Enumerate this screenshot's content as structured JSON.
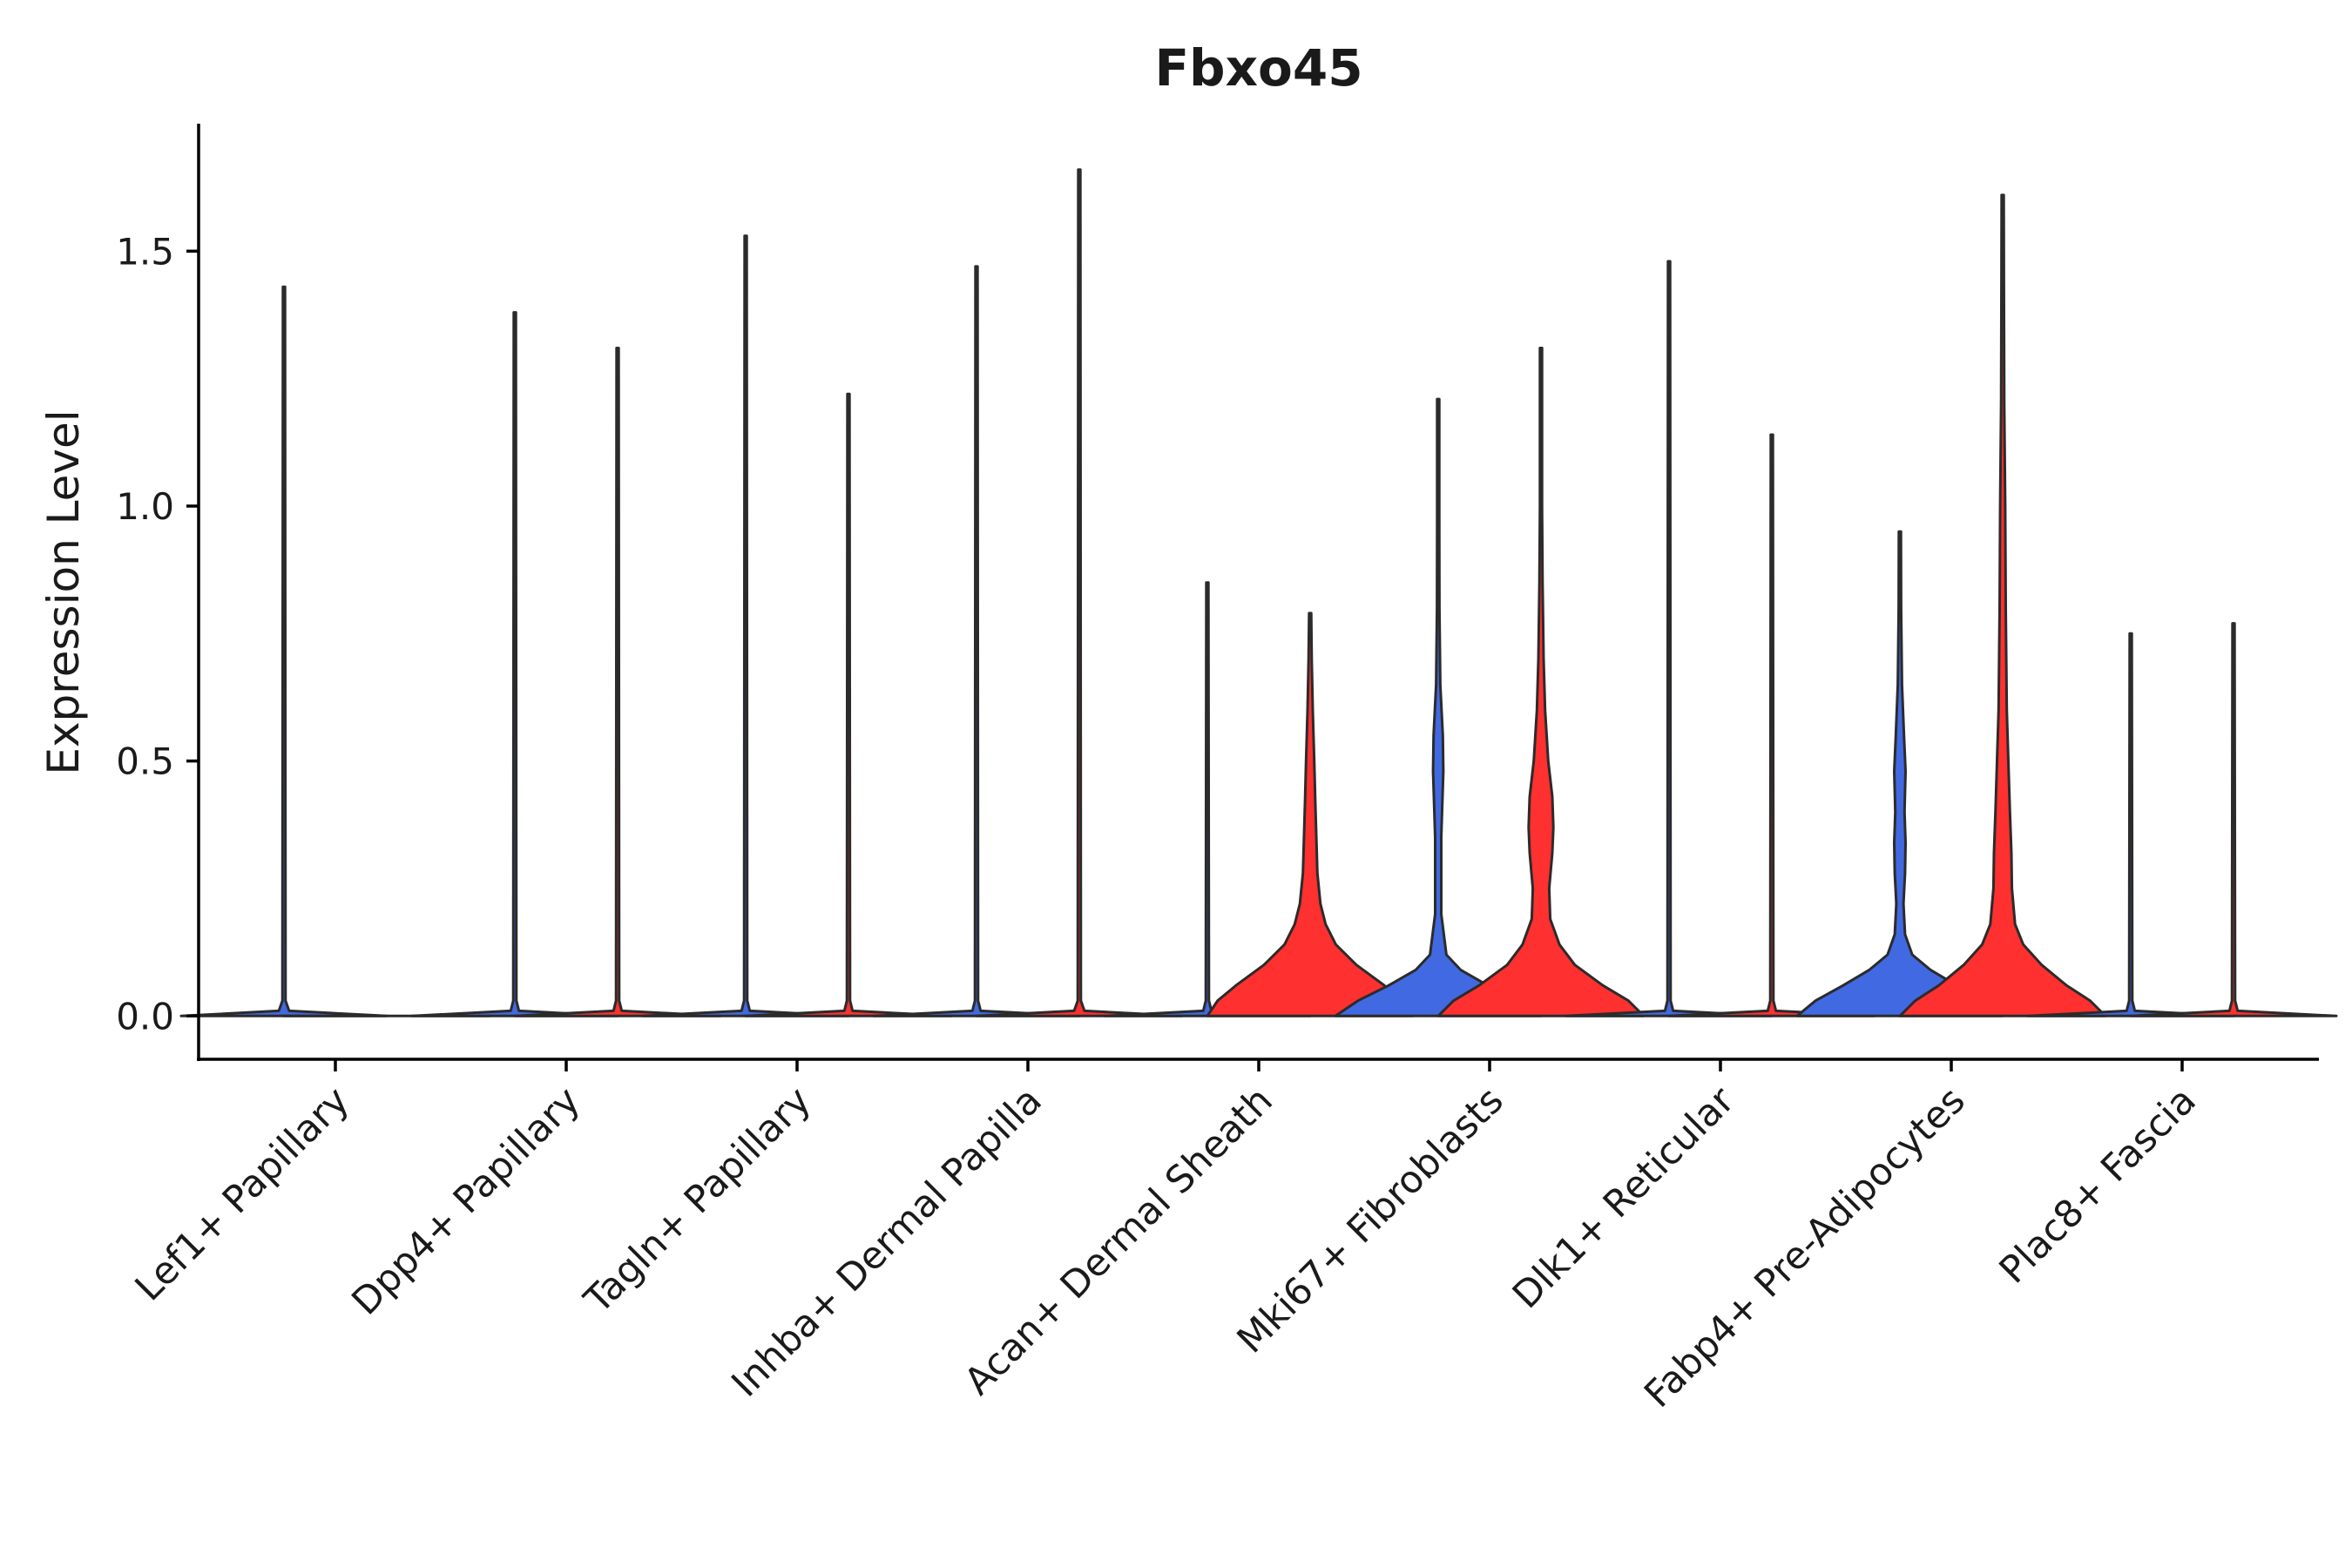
{
  "chart_data": {
    "type": "violin",
    "title": "Fbxo45",
    "ylabel": "Expression Level",
    "xlabel": "",
    "ylim": [
      -0.085,
      1.75
    ],
    "yticks": [
      0.0,
      0.5,
      1.0,
      1.5
    ],
    "ytick_labels": [
      "0.0",
      "0.5",
      "1.0",
      "1.5"
    ],
    "grid": false,
    "legend": "none",
    "colors": {
      "group1": "#4169E1",
      "group2": "#FF3030",
      "outline": "#2b2b2b"
    },
    "categories": [
      "Lef1+ Papillary",
      "Dpp4+ Papillary",
      "Tagln+ Papillary",
      "Inhba+ Dermal Papilla",
      "Acan+ Dermal Sheath",
      "Mki67+ Fibroblasts",
      "Dlk1+ Reticular",
      "Fabp4+ Pre-Adipocytes",
      "Plac8+ Fascia"
    ],
    "violins": [
      {
        "category": 0,
        "group": 1,
        "max": 1.43,
        "color": "#4169E1",
        "density": [
          [
            0,
            1.0
          ],
          [
            0.01,
            0.05
          ],
          [
            0.03,
            0.015
          ],
          [
            1.43,
            0.01
          ]
        ]
      },
      {
        "category": 0,
        "group": 2,
        "max": 0.0,
        "color": "#FF3030",
        "density": [
          [
            0,
            1.0
          ]
        ]
      },
      {
        "category": 1,
        "group": 1,
        "max": 1.38,
        "color": "#4169E1",
        "density": [
          [
            0,
            1.0
          ],
          [
            0.01,
            0.04
          ],
          [
            0.03,
            0.015
          ],
          [
            1.38,
            0.01
          ]
        ]
      },
      {
        "category": 1,
        "group": 2,
        "max": 1.31,
        "color": "#FF3030",
        "density": [
          [
            0,
            1.0
          ],
          [
            0.01,
            0.04
          ],
          [
            0.03,
            0.015
          ],
          [
            1.31,
            0.01
          ]
        ]
      },
      {
        "category": 2,
        "group": 1,
        "max": 1.53,
        "color": "#4169E1",
        "density": [
          [
            0,
            1.0
          ],
          [
            0.01,
            0.04
          ],
          [
            0.03,
            0.015
          ],
          [
            1.53,
            0.01
          ]
        ]
      },
      {
        "category": 2,
        "group": 2,
        "max": 1.22,
        "color": "#FF3030",
        "density": [
          [
            0,
            1.0
          ],
          [
            0.01,
            0.04
          ],
          [
            0.03,
            0.015
          ],
          [
            1.22,
            0.01
          ]
        ]
      },
      {
        "category": 3,
        "group": 1,
        "max": 1.47,
        "color": "#4169E1",
        "density": [
          [
            0,
            1.0
          ],
          [
            0.01,
            0.04
          ],
          [
            0.03,
            0.015
          ],
          [
            1.47,
            0.01
          ]
        ]
      },
      {
        "category": 3,
        "group": 2,
        "max": 1.66,
        "color": "#FF3030",
        "density": [
          [
            0,
            1.0
          ],
          [
            0.01,
            0.05
          ],
          [
            0.03,
            0.015
          ],
          [
            1.66,
            0.01
          ]
        ]
      },
      {
        "category": 4,
        "group": 1,
        "max": 0.85,
        "color": "#4169E1",
        "density": [
          [
            0,
            1.0
          ],
          [
            0.01,
            0.04
          ],
          [
            0.03,
            0.015
          ],
          [
            0.85,
            0.01
          ]
        ]
      },
      {
        "category": 4,
        "group": 2,
        "max": 0.79,
        "color": "#FF3030",
        "density": [
          [
            0,
            1.0
          ],
          [
            0.03,
            0.9
          ],
          [
            0.06,
            0.72
          ],
          [
            0.1,
            0.45
          ],
          [
            0.14,
            0.25
          ],
          [
            0.18,
            0.15
          ],
          [
            0.22,
            0.1
          ],
          [
            0.28,
            0.07
          ],
          [
            0.35,
            0.06
          ],
          [
            0.42,
            0.05
          ],
          [
            0.5,
            0.04
          ],
          [
            0.6,
            0.025
          ],
          [
            0.7,
            0.015
          ],
          [
            0.79,
            0.005
          ]
        ]
      },
      {
        "category": 5,
        "group": 1,
        "max": 1.21,
        "color": "#4169E1",
        "density": [
          [
            0,
            1.0
          ],
          [
            0.03,
            0.78
          ],
          [
            0.06,
            0.48
          ],
          [
            0.09,
            0.22
          ],
          [
            0.12,
            0.08
          ],
          [
            0.2,
            0.03
          ],
          [
            0.35,
            0.03
          ],
          [
            0.48,
            0.05
          ],
          [
            0.55,
            0.045
          ],
          [
            0.65,
            0.02
          ],
          [
            0.8,
            0.012
          ],
          [
            1.0,
            0.01
          ],
          [
            1.21,
            0.005
          ]
        ]
      },
      {
        "category": 5,
        "group": 2,
        "max": 1.31,
        "color": "#FF3030",
        "density": [
          [
            0,
            1.0
          ],
          [
            0.03,
            0.85
          ],
          [
            0.06,
            0.6
          ],
          [
            0.1,
            0.33
          ],
          [
            0.14,
            0.18
          ],
          [
            0.19,
            0.09
          ],
          [
            0.25,
            0.08
          ],
          [
            0.32,
            0.11
          ],
          [
            0.37,
            0.12
          ],
          [
            0.43,
            0.11
          ],
          [
            0.5,
            0.07
          ],
          [
            0.6,
            0.04
          ],
          [
            0.7,
            0.025
          ],
          [
            0.85,
            0.015
          ],
          [
            1.0,
            0.01
          ],
          [
            1.31,
            0.005
          ]
        ]
      },
      {
        "category": 6,
        "group": 1,
        "max": 1.48,
        "color": "#4169E1",
        "density": [
          [
            0,
            1.0
          ],
          [
            0.01,
            0.04
          ],
          [
            0.03,
            0.015
          ],
          [
            1.48,
            0.01
          ]
        ]
      },
      {
        "category": 6,
        "group": 2,
        "max": 1.14,
        "color": "#FF3030",
        "density": [
          [
            0,
            1.0
          ],
          [
            0.01,
            0.04
          ],
          [
            0.03,
            0.015
          ],
          [
            1.14,
            0.01
          ]
        ]
      },
      {
        "category": 7,
        "group": 1,
        "max": 0.95,
        "color": "#4169E1",
        "density": [
          [
            0,
            1.0
          ],
          [
            0.03,
            0.82
          ],
          [
            0.06,
            0.55
          ],
          [
            0.09,
            0.3
          ],
          [
            0.12,
            0.12
          ],
          [
            0.16,
            0.05
          ],
          [
            0.22,
            0.035
          ],
          [
            0.28,
            0.05
          ],
          [
            0.34,
            0.055
          ],
          [
            0.4,
            0.045
          ],
          [
            0.48,
            0.055
          ],
          [
            0.55,
            0.04
          ],
          [
            0.65,
            0.02
          ],
          [
            0.8,
            0.012
          ],
          [
            0.95,
            0.005
          ]
        ]
      },
      {
        "category": 7,
        "group": 2,
        "max": 1.61,
        "color": "#FF3030",
        "density": [
          [
            0,
            1.0
          ],
          [
            0.03,
            0.85
          ],
          [
            0.06,
            0.62
          ],
          [
            0.1,
            0.38
          ],
          [
            0.14,
            0.2
          ],
          [
            0.18,
            0.12
          ],
          [
            0.25,
            0.09
          ],
          [
            0.32,
            0.085
          ],
          [
            0.4,
            0.07
          ],
          [
            0.5,
            0.055
          ],
          [
            0.6,
            0.04
          ],
          [
            0.8,
            0.03
          ],
          [
            1.0,
            0.025
          ],
          [
            1.2,
            0.015
          ],
          [
            1.45,
            0.012
          ],
          [
            1.61,
            0.008
          ]
        ]
      },
      {
        "category": 8,
        "group": 1,
        "max": 0.75,
        "color": "#4169E1",
        "density": [
          [
            0,
            1.0
          ],
          [
            0.01,
            0.04
          ],
          [
            0.03,
            0.015
          ],
          [
            0.75,
            0.01
          ]
        ]
      },
      {
        "category": 8,
        "group": 2,
        "max": 0.77,
        "color": "#FF3030",
        "density": [
          [
            0,
            1.0
          ],
          [
            0.01,
            0.04
          ],
          [
            0.03,
            0.015
          ],
          [
            0.77,
            0.01
          ]
        ]
      }
    ]
  }
}
